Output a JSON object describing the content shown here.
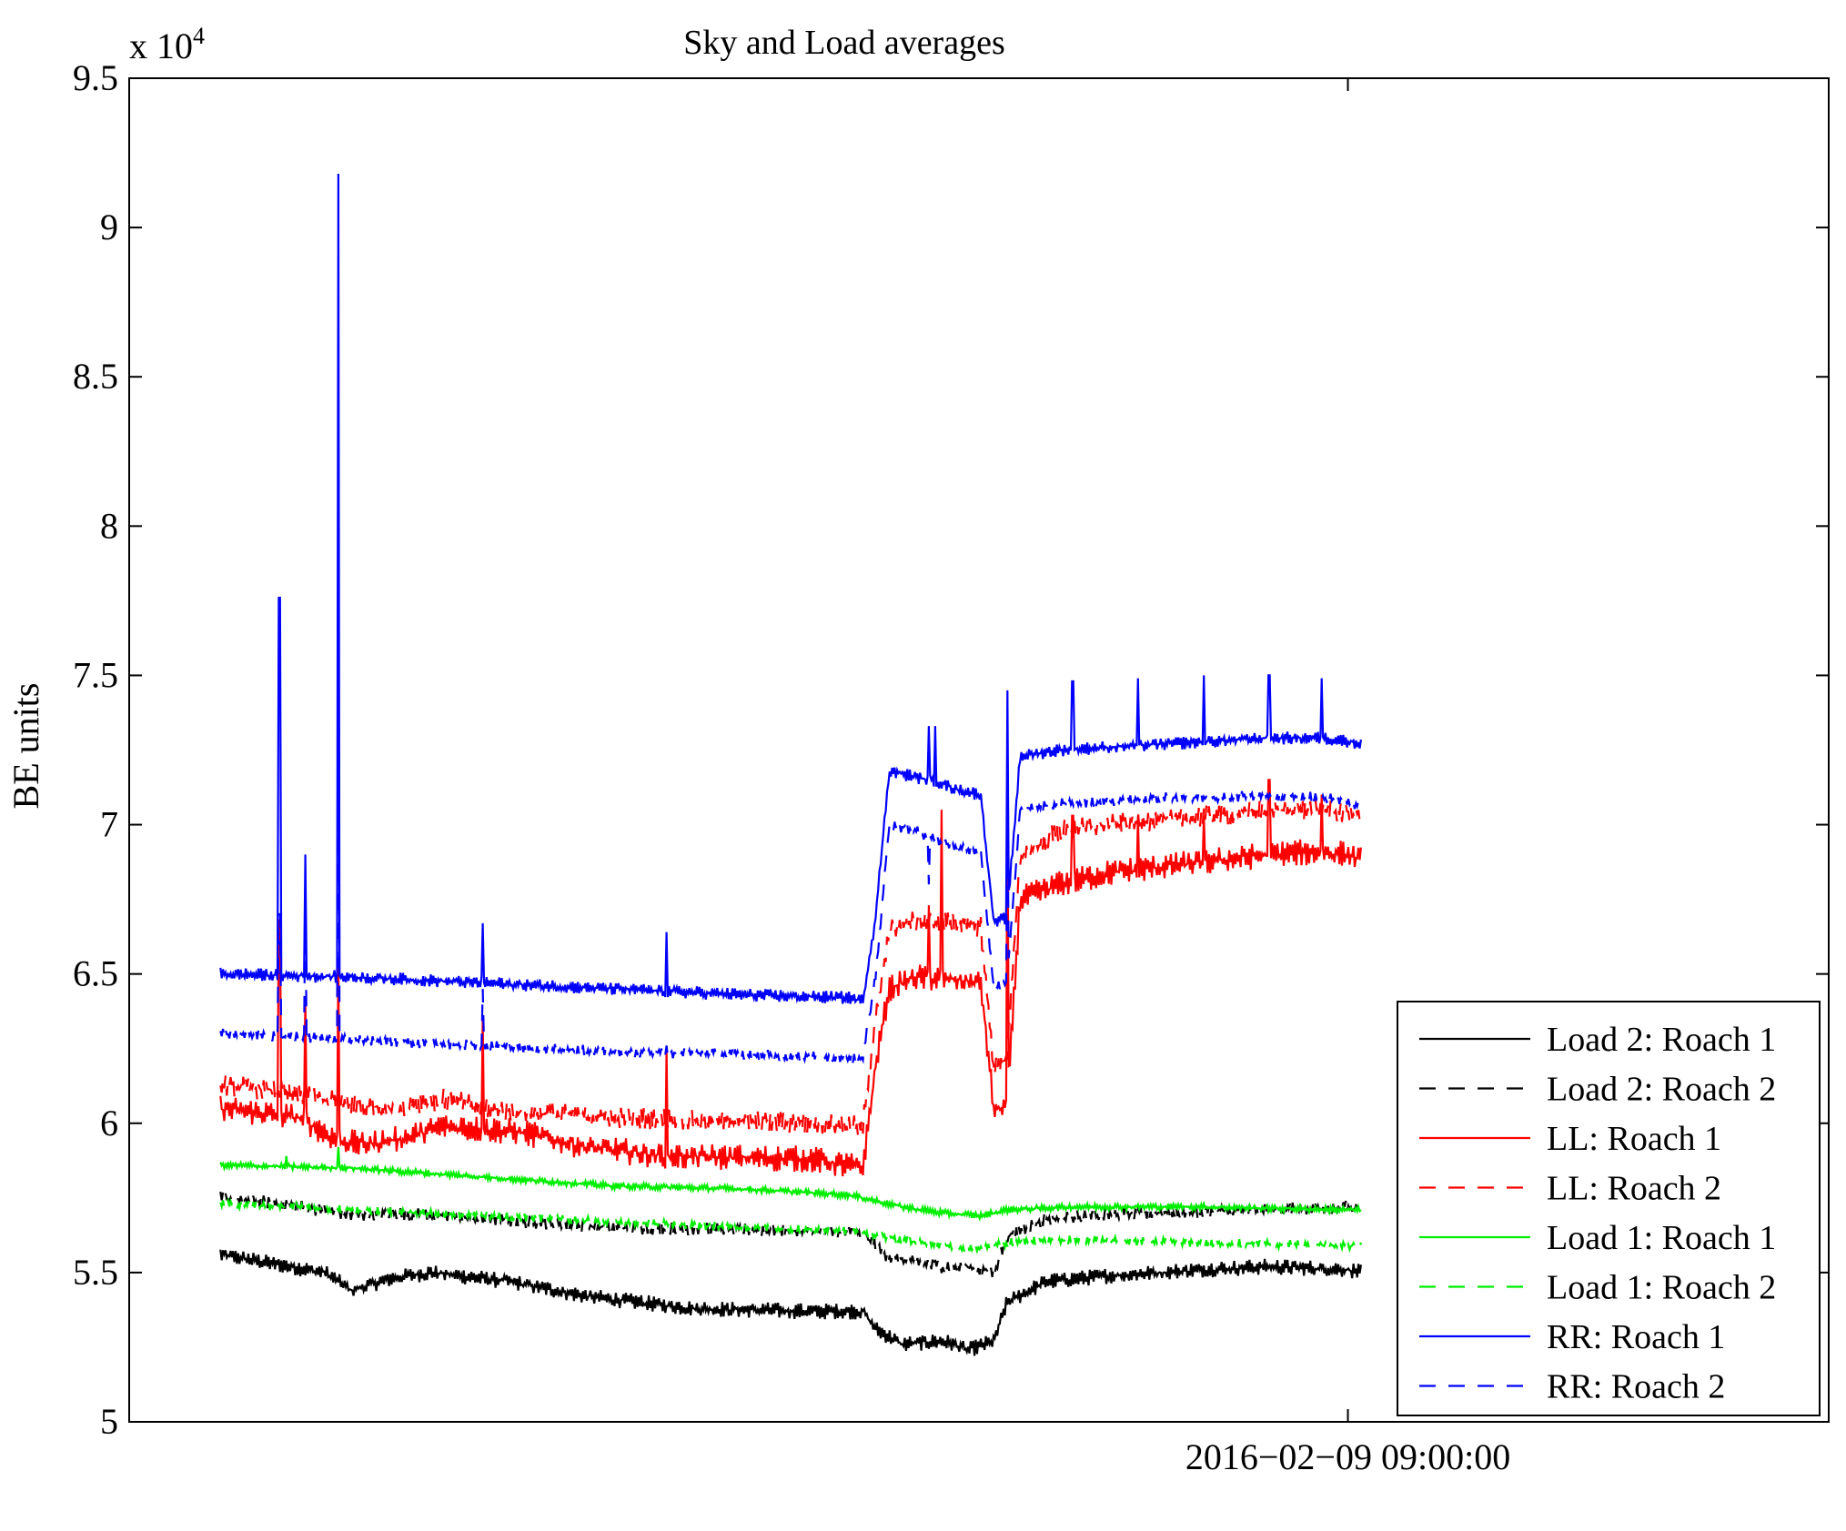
{
  "chart_data": {
    "type": "line",
    "title": "Sky and Load averages",
    "ylabel": "BE units",
    "xlabel": "",
    "y_multiplier_label": "x 10",
    "y_multiplier_exponent": "4",
    "ylim": [
      50000,
      95000
    ],
    "xlim": [
      -0.0,
      1.0
    ],
    "x_tick_position": 0.86,
    "x_tick_label": "2016−02−09 09:00:00",
    "y_ticks": [
      50000,
      55000,
      60000,
      65000,
      70000,
      75000,
      80000,
      85000,
      90000,
      95000
    ],
    "y_tick_labels": [
      "5",
      "5.5",
      "6",
      "6.5",
      "7",
      "7.5",
      "8",
      "8.5",
      "9",
      "9.5"
    ],
    "x_data_start": 0.0,
    "x_data_end": 1.0,
    "legend_position": "bottom-right",
    "series": [
      {
        "name": "Load 2: Roach 1",
        "color": "#000000",
        "dash": "solid",
        "noise": 150,
        "points": [
          [
            0.0,
            55600
          ],
          [
            0.04,
            55300
          ],
          [
            0.08,
            55000
          ],
          [
            0.1,
            54400
          ],
          [
            0.13,
            54800
          ],
          [
            0.16,
            55000
          ],
          [
            0.22,
            54700
          ],
          [
            0.28,
            54200
          ],
          [
            0.36,
            53800
          ],
          [
            0.45,
            53700
          ],
          [
            0.49,
            53700
          ],
          [
            0.5,
            53100
          ],
          [
            0.52,
            52600
          ],
          [
            0.55,
            52700
          ],
          [
            0.56,
            52600
          ],
          [
            0.57,
            52400
          ],
          [
            0.59,
            52700
          ],
          [
            0.6,
            54000
          ],
          [
            0.63,
            54700
          ],
          [
            0.68,
            54900
          ],
          [
            0.75,
            55100
          ],
          [
            0.8,
            55200
          ],
          [
            0.86,
            55100
          ],
          [
            0.87,
            55000
          ]
        ]
      },
      {
        "name": "Load 2: Roach 2",
        "color": "#000000",
        "dash": "18,14",
        "noise": 120,
        "points": [
          [
            0.0,
            57500
          ],
          [
            0.05,
            57300
          ],
          [
            0.1,
            56900
          ],
          [
            0.13,
            57000
          ],
          [
            0.2,
            56800
          ],
          [
            0.3,
            56500
          ],
          [
            0.45,
            56400
          ],
          [
            0.49,
            56300
          ],
          [
            0.51,
            55500
          ],
          [
            0.55,
            55200
          ],
          [
            0.57,
            55200
          ],
          [
            0.59,
            55000
          ],
          [
            0.6,
            56200
          ],
          [
            0.63,
            56800
          ],
          [
            0.7,
            57000
          ],
          [
            0.8,
            57100
          ],
          [
            0.86,
            57200
          ],
          [
            0.87,
            57100
          ]
        ]
      },
      {
        "name": "LL: Roach 1",
        "color": "#ff0000",
        "dash": "solid",
        "noise": 250,
        "points": [
          [
            0.0,
            60500
          ],
          [
            0.04,
            60300
          ],
          [
            0.06,
            60200
          ],
          [
            0.09,
            59400
          ],
          [
            0.11,
            59300
          ],
          [
            0.14,
            59500
          ],
          [
            0.17,
            59900
          ],
          [
            0.23,
            59700
          ],
          [
            0.28,
            59200
          ],
          [
            0.34,
            58900
          ],
          [
            0.45,
            58800
          ],
          [
            0.49,
            58500
          ],
          [
            0.5,
            62000
          ],
          [
            0.51,
            64500
          ],
          [
            0.53,
            64900
          ],
          [
            0.56,
            64800
          ],
          [
            0.58,
            64700
          ],
          [
            0.59,
            60400
          ],
          [
            0.6,
            60600
          ],
          [
            0.61,
            67500
          ],
          [
            0.64,
            68000
          ],
          [
            0.68,
            68400
          ],
          [
            0.72,
            68600
          ],
          [
            0.76,
            68800
          ],
          [
            0.8,
            69000
          ],
          [
            0.84,
            69100
          ],
          [
            0.86,
            69000
          ],
          [
            0.87,
            68800
          ]
        ]
      },
      {
        "name": "LL: Roach 2",
        "color": "#ff0000",
        "dash": "18,14",
        "noise": 200,
        "points": [
          [
            0.0,
            61300
          ],
          [
            0.06,
            61000
          ],
          [
            0.1,
            60600
          ],
          [
            0.13,
            60500
          ],
          [
            0.17,
            60800
          ],
          [
            0.22,
            60400
          ],
          [
            0.3,
            60200
          ],
          [
            0.45,
            60000
          ],
          [
            0.49,
            59900
          ],
          [
            0.5,
            63500
          ],
          [
            0.51,
            66500
          ],
          [
            0.53,
            66800
          ],
          [
            0.56,
            66700
          ],
          [
            0.58,
            66600
          ],
          [
            0.59,
            61800
          ],
          [
            0.6,
            62200
          ],
          [
            0.61,
            68900
          ],
          [
            0.64,
            69800
          ],
          [
            0.68,
            70000
          ],
          [
            0.72,
            70200
          ],
          [
            0.76,
            70300
          ],
          [
            0.8,
            70500
          ],
          [
            0.84,
            70500
          ],
          [
            0.86,
            70400
          ],
          [
            0.87,
            70300
          ]
        ]
      },
      {
        "name": "Load 1: Roach 1",
        "color": "#00ee00",
        "dash": "solid",
        "noise": 60,
        "points": [
          [
            0.0,
            58600
          ],
          [
            0.1,
            58500
          ],
          [
            0.2,
            58200
          ],
          [
            0.3,
            57900
          ],
          [
            0.4,
            57800
          ],
          [
            0.48,
            57600
          ],
          [
            0.52,
            57200
          ],
          [
            0.55,
            57000
          ],
          [
            0.58,
            56900
          ],
          [
            0.6,
            57100
          ],
          [
            0.65,
            57200
          ],
          [
            0.75,
            57200
          ],
          [
            0.86,
            57100
          ],
          [
            0.87,
            57100
          ]
        ]
      },
      {
        "name": "Load 1: Roach 2",
        "color": "#00ee00",
        "dash": "18,14",
        "noise": 80,
        "points": [
          [
            0.0,
            57300
          ],
          [
            0.1,
            57100
          ],
          [
            0.2,
            56900
          ],
          [
            0.3,
            56700
          ],
          [
            0.4,
            56500
          ],
          [
            0.48,
            56400
          ],
          [
            0.52,
            56100
          ],
          [
            0.55,
            55900
          ],
          [
            0.58,
            55800
          ],
          [
            0.6,
            56000
          ],
          [
            0.65,
            56100
          ],
          [
            0.75,
            56000
          ],
          [
            0.86,
            55900
          ],
          [
            0.87,
            55900
          ]
        ]
      },
      {
        "name": "RR: Roach 1",
        "color": "#0000ff",
        "dash": "solid",
        "noise": 120,
        "points": [
          [
            0.0,
            65000
          ],
          [
            0.1,
            64900
          ],
          [
            0.2,
            64700
          ],
          [
            0.3,
            64500
          ],
          [
            0.4,
            64300
          ],
          [
            0.48,
            64200
          ],
          [
            0.49,
            64100
          ],
          [
            0.5,
            67000
          ],
          [
            0.51,
            71800
          ],
          [
            0.53,
            71600
          ],
          [
            0.55,
            71400
          ],
          [
            0.56,
            71200
          ],
          [
            0.58,
            71000
          ],
          [
            0.59,
            66700
          ],
          [
            0.6,
            66900
          ],
          [
            0.61,
            72300
          ],
          [
            0.64,
            72500
          ],
          [
            0.68,
            72600
          ],
          [
            0.72,
            72700
          ],
          [
            0.76,
            72800
          ],
          [
            0.8,
            72900
          ],
          [
            0.84,
            72900
          ],
          [
            0.86,
            72800
          ],
          [
            0.87,
            72700
          ]
        ]
      },
      {
        "name": "RR: Roach 2",
        "color": "#0000ff",
        "dash": "18,14",
        "noise": 100,
        "points": [
          [
            0.0,
            63000
          ],
          [
            0.1,
            62800
          ],
          [
            0.2,
            62600
          ],
          [
            0.3,
            62400
          ],
          [
            0.4,
            62300
          ],
          [
            0.48,
            62200
          ],
          [
            0.49,
            62200
          ],
          [
            0.5,
            65000
          ],
          [
            0.51,
            70000
          ],
          [
            0.53,
            69800
          ],
          [
            0.55,
            69400
          ],
          [
            0.56,
            69300
          ],
          [
            0.58,
            69100
          ],
          [
            0.59,
            64500
          ],
          [
            0.6,
            64700
          ],
          [
            0.61,
            70500
          ],
          [
            0.64,
            70700
          ],
          [
            0.68,
            70800
          ],
          [
            0.72,
            70900
          ],
          [
            0.76,
            70900
          ],
          [
            0.8,
            71000
          ],
          [
            0.84,
            70900
          ],
          [
            0.86,
            70800
          ],
          [
            0.87,
            70600
          ]
        ]
      }
    ],
    "spikes": [
      {
        "series": "RR: Roach 1",
        "x": [
          0.045,
          0.065,
          0.09,
          0.2,
          0.34,
          0.54,
          0.545,
          0.6,
          0.65,
          0.7,
          0.75,
          0.8,
          0.84
        ],
        "peak": [
          77600,
          69000,
          91800,
          66700,
          66400,
          73300,
          73300,
          74500,
          74800,
          74900,
          75000,
          75000,
          74900
        ]
      },
      {
        "series": "RR: Roach 2",
        "x": [
          0.045,
          0.065,
          0.09,
          0.2,
          0.34,
          0.54,
          0.6
        ],
        "peak": [
          67000,
          67500,
          80500,
          64500,
          62600,
          68000,
          71000
        ]
      },
      {
        "series": "LL: Roach 1",
        "x": [
          0.045,
          0.065,
          0.09,
          0.2,
          0.34,
          0.54,
          0.55,
          0.6,
          0.65,
          0.7,
          0.75,
          0.8,
          0.84
        ],
        "peak": [
          66800,
          64200,
          65500,
          63600,
          62500,
          67300,
          70500,
          71500,
          70300,
          70300,
          70300,
          71500,
          71000
        ]
      },
      {
        "series": "Load 1: Roach 1",
        "x": [
          0.05,
          0.09
        ],
        "peak": [
          58900,
          59200
        ]
      }
    ]
  },
  "legend": {
    "items": [
      {
        "label": "Load 2: Roach 1",
        "color": "#000000",
        "dash": "solid"
      },
      {
        "label": "Load 2: Roach 2",
        "color": "#000000",
        "dash": "18,14"
      },
      {
        "label": "LL: Roach 1",
        "color": "#ff0000",
        "dash": "solid"
      },
      {
        "label": "LL: Roach 2",
        "color": "#ff0000",
        "dash": "18,14"
      },
      {
        "label": "Load 1: Roach 1",
        "color": "#00ee00",
        "dash": "solid"
      },
      {
        "label": "Load 1: Roach 2",
        "color": "#00ee00",
        "dash": "18,14"
      },
      {
        "label": "RR: Roach 1",
        "color": "#0000ff",
        "dash": "solid"
      },
      {
        "label": "RR: Roach 2",
        "color": "#0000ff",
        "dash": "18,14"
      }
    ]
  }
}
